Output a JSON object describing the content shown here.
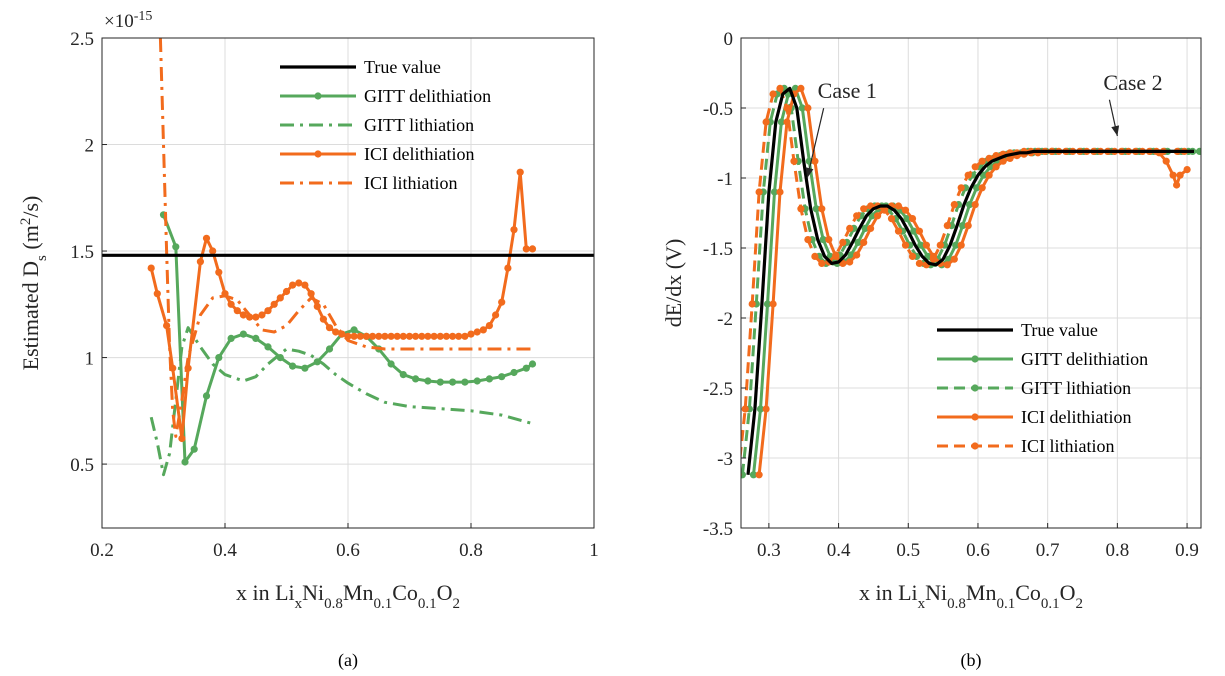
{
  "chart_data": [
    {
      "type": "line",
      "caption": "(a)",
      "xlabel": {
        "base": "x in Li",
        "s1": "x",
        "t1": "Ni",
        "s2": "0.8",
        "t2": "Mn",
        "s3": "0.1",
        "t3": "Co",
        "s4": "0.1",
        "t4": "O",
        "s5": "2"
      },
      "ylabel": {
        "base": "Estimated D",
        "sub": "s",
        "open": " (m",
        "sup": "2",
        "close": "/s)"
      },
      "exponent": {
        "base": "×10",
        "power": "-15"
      },
      "xlim": [
        0.2,
        1
      ],
      "ylim": [
        0.2,
        2.5
      ],
      "xticks": [
        0.2,
        0.4,
        0.6,
        0.8,
        1
      ],
      "xtick_labels": [
        "0.2",
        "0.4",
        "0.6",
        "0.8",
        "1"
      ],
      "yticks": [
        0.5,
        1,
        1.5,
        2,
        2.5
      ],
      "ytick_labels": [
        "0.5",
        "1",
        "1.5",
        "2",
        "2.5"
      ],
      "grid": true,
      "legend_position": "top-right",
      "series": [
        {
          "name": "True value",
          "color": "#000000",
          "style": "solid",
          "markers": false,
          "width": 3.2,
          "x": [
            0.2,
            1.0
          ],
          "y": [
            1.48,
            1.48
          ]
        },
        {
          "name": "GITT delithiation",
          "color": "#56a85c",
          "style": "solid",
          "markers": true,
          "width": 3,
          "x": [
            0.3,
            0.32,
            0.335,
            0.35,
            0.37,
            0.39,
            0.41,
            0.43,
            0.45,
            0.47,
            0.49,
            0.51,
            0.53,
            0.55,
            0.57,
            0.59,
            0.61,
            0.63,
            0.65,
            0.67,
            0.69,
            0.71,
            0.73,
            0.75,
            0.77,
            0.79,
            0.81,
            0.83,
            0.85,
            0.87,
            0.89,
            0.9
          ],
          "y": [
            1.67,
            1.52,
            0.51,
            0.57,
            0.82,
            1.0,
            1.09,
            1.11,
            1.09,
            1.05,
            1.0,
            0.96,
            0.95,
            0.98,
            1.04,
            1.11,
            1.13,
            1.1,
            1.04,
            0.97,
            0.92,
            0.9,
            0.89,
            0.885,
            0.885,
            0.885,
            0.89,
            0.9,
            0.91,
            0.93,
            0.95,
            0.97
          ]
        },
        {
          "name": "GITT lithiation",
          "color": "#56a85c",
          "style": "dashdot",
          "markers": false,
          "width": 3,
          "x": [
            0.28,
            0.29,
            0.3,
            0.31,
            0.32,
            0.33,
            0.34,
            0.36,
            0.38,
            0.4,
            0.43,
            0.45,
            0.47,
            0.5,
            0.52,
            0.54,
            0.56,
            0.58,
            0.6,
            0.63,
            0.66,
            0.7,
            0.75,
            0.8,
            0.85,
            0.9
          ],
          "y": [
            0.72,
            0.6,
            0.45,
            0.55,
            0.8,
            1.05,
            1.14,
            1.05,
            0.97,
            0.92,
            0.89,
            0.91,
            0.97,
            1.04,
            1.03,
            1.01,
            0.97,
            0.92,
            0.88,
            0.83,
            0.79,
            0.77,
            0.76,
            0.75,
            0.73,
            0.69
          ]
        },
        {
          "name": "ICI delithiation",
          "color": "#f26b1d",
          "style": "solid",
          "markers": true,
          "width": 3,
          "x": [
            0.28,
            0.29,
            0.305,
            0.315,
            0.33,
            0.34,
            0.36,
            0.37,
            0.38,
            0.39,
            0.4,
            0.41,
            0.42,
            0.43,
            0.44,
            0.45,
            0.46,
            0.47,
            0.48,
            0.49,
            0.5,
            0.51,
            0.52,
            0.53,
            0.54,
            0.55,
            0.56,
            0.57,
            0.58,
            0.59,
            0.6,
            0.61,
            0.62,
            0.63,
            0.64,
            0.65,
            0.66,
            0.67,
            0.68,
            0.69,
            0.7,
            0.71,
            0.72,
            0.73,
            0.74,
            0.75,
            0.76,
            0.77,
            0.78,
            0.79,
            0.8,
            0.81,
            0.82,
            0.83,
            0.84,
            0.85,
            0.86,
            0.87,
            0.88,
            0.89,
            0.9
          ],
          "y": [
            1.42,
            1.3,
            1.15,
            0.95,
            0.62,
            0.95,
            1.45,
            1.56,
            1.5,
            1.4,
            1.3,
            1.25,
            1.22,
            1.2,
            1.19,
            1.19,
            1.2,
            1.22,
            1.25,
            1.28,
            1.31,
            1.34,
            1.35,
            1.34,
            1.3,
            1.24,
            1.18,
            1.14,
            1.12,
            1.11,
            1.1,
            1.1,
            1.1,
            1.1,
            1.1,
            1.1,
            1.1,
            1.1,
            1.1,
            1.1,
            1.1,
            1.1,
            1.1,
            1.1,
            1.1,
            1.1,
            1.1,
            1.1,
            1.1,
            1.1,
            1.11,
            1.12,
            1.13,
            1.15,
            1.2,
            1.26,
            1.42,
            1.6,
            1.87,
            1.51,
            1.51
          ]
        },
        {
          "name": "ICI lithiation",
          "color": "#f26b1d",
          "style": "dashdot",
          "markers": false,
          "width": 3,
          "x": [
            0.295,
            0.3,
            0.305,
            0.31,
            0.315,
            0.32,
            0.33,
            0.34,
            0.36,
            0.38,
            0.4,
            0.42,
            0.44,
            0.46,
            0.48,
            0.5,
            0.52,
            0.54,
            0.56,
            0.58,
            0.6,
            0.63,
            0.66,
            0.7,
            0.75,
            0.8,
            0.85,
            0.9
          ],
          "y": [
            2.5,
            2.0,
            1.5,
            1.05,
            0.75,
            0.63,
            0.8,
            1.0,
            1.2,
            1.28,
            1.29,
            1.27,
            1.2,
            1.13,
            1.12,
            1.15,
            1.22,
            1.28,
            1.25,
            1.15,
            1.08,
            1.05,
            1.04,
            1.04,
            1.04,
            1.04,
            1.04,
            1.04
          ]
        }
      ]
    },
    {
      "type": "line",
      "caption": "(b)",
      "xlabel": {
        "base": "x in Li",
        "s1": "x",
        "t1": "Ni",
        "s2": "0.8",
        "t2": "Mn",
        "s3": "0.1",
        "t3": "Co",
        "s4": "0.1",
        "t4": "O",
        "s5": "2"
      },
      "ylabel": {
        "base": "dE/dx (V)"
      },
      "xlim": [
        0.26,
        0.92
      ],
      "ylim": [
        -3.5,
        0
      ],
      "xticks": [
        0.3,
        0.4,
        0.5,
        0.6,
        0.7,
        0.8,
        0.9
      ],
      "xtick_labels": [
        "0.3",
        "0.4",
        "0.5",
        "0.6",
        "0.7",
        "0.8",
        "0.9"
      ],
      "yticks": [
        -3.5,
        -3,
        -2.5,
        -2,
        -1.5,
        -1,
        -0.5,
        0
      ],
      "ytick_labels": [
        "-3.5",
        "-3",
        "-2.5",
        "-2",
        "-1.5",
        "-1",
        "-0.5",
        "0"
      ],
      "grid": true,
      "legend_position": "bottom-right",
      "annotations": [
        {
          "text": "Case 1",
          "tx": 0.37,
          "ty": -0.43,
          "ax": 0.355,
          "ay": -1.0
        },
        {
          "text": "Case 2",
          "tx": 0.78,
          "ty": -0.37,
          "ax": 0.8,
          "ay": -0.7
        }
      ],
      "series": [
        {
          "name": "True value",
          "color": "#000000",
          "style": "solid",
          "markers": false,
          "shift": 0.0,
          "width": 3.2
        },
        {
          "name": "GITT delithiation",
          "color": "#56a85c",
          "style": "solid",
          "markers": true,
          "shift": 0.008,
          "width": 3
        },
        {
          "name": "GITT lithiation",
          "color": "#56a85c",
          "style": "dashed",
          "markers": true,
          "shift": -0.008,
          "width": 3
        },
        {
          "name": "ICI delithiation",
          "color": "#f26b1d",
          "style": "solid",
          "markers": true,
          "shift": 0.016,
          "width": 3,
          "tail": [
            [
              0.86,
              -0.82
            ],
            [
              0.87,
              -0.88
            ],
            [
              0.88,
              -0.98
            ],
            [
              0.885,
              -1.05
            ],
            [
              0.89,
              -0.98
            ],
            [
              0.9,
              -0.94
            ]
          ]
        },
        {
          "name": "ICI lithiation",
          "color": "#f26b1d",
          "style": "dashed",
          "markers": true,
          "shift": -0.014,
          "width": 3
        }
      ],
      "base_curve": {
        "x": [
          0.27,
          0.28,
          0.29,
          0.3,
          0.31,
          0.32,
          0.33,
          0.34,
          0.35,
          0.36,
          0.37,
          0.38,
          0.39,
          0.4,
          0.41,
          0.42,
          0.43,
          0.44,
          0.45,
          0.46,
          0.47,
          0.48,
          0.49,
          0.5,
          0.51,
          0.52,
          0.53,
          0.54,
          0.55,
          0.56,
          0.57,
          0.58,
          0.59,
          0.6,
          0.61,
          0.62,
          0.63,
          0.64,
          0.65,
          0.66,
          0.67,
          0.68,
          0.69,
          0.7,
          0.72,
          0.74,
          0.76,
          0.78,
          0.8,
          0.82,
          0.84,
          0.86,
          0.88,
          0.9,
          0.91
        ],
        "y": [
          -3.12,
          -2.65,
          -1.9,
          -1.1,
          -0.6,
          -0.4,
          -0.36,
          -0.5,
          -0.88,
          -1.22,
          -1.44,
          -1.56,
          -1.61,
          -1.6,
          -1.55,
          -1.46,
          -1.36,
          -1.27,
          -1.22,
          -1.2,
          -1.2,
          -1.23,
          -1.29,
          -1.38,
          -1.48,
          -1.56,
          -1.61,
          -1.62,
          -1.58,
          -1.48,
          -1.34,
          -1.19,
          -1.07,
          -0.98,
          -0.92,
          -0.88,
          -0.86,
          -0.84,
          -0.83,
          -0.82,
          -0.82,
          -0.81,
          -0.81,
          -0.81,
          -0.81,
          -0.81,
          -0.81,
          -0.81,
          -0.81,
          -0.81,
          -0.81,
          -0.81,
          -0.81,
          -0.81,
          -0.81
        ]
      }
    }
  ]
}
